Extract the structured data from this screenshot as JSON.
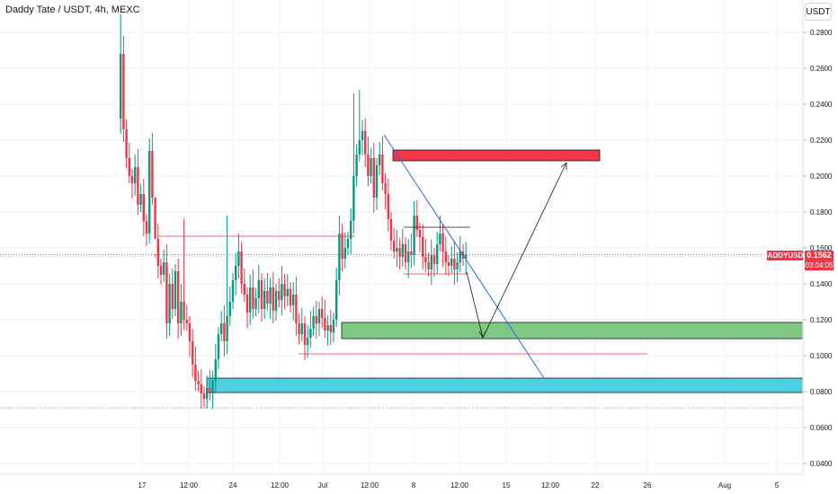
{
  "header": {
    "title": "Daddy Tate / USDT, 4h, MEXC",
    "currency_button": "USDT"
  },
  "price_label": {
    "symbol": "DADDYUSDT",
    "value": "0.1562",
    "countdown": "03:04:05"
  },
  "colors": {
    "up": "#089981",
    "down": "#f23645",
    "resistance_zone": "#f23645",
    "support_zone": "#81c784",
    "deep_support_zone": "#4dd0e1",
    "trendline": "#2962ff"
  },
  "chart_data": {
    "type": "candlestick",
    "title": "Daddy Tate / USDT, 4h, MEXC",
    "y_axis": {
      "ticks": [
        "0.2800",
        "0.2600",
        "0.2400",
        "0.2200",
        "0.2000",
        "0.1800",
        "0.1600",
        "0.1400",
        "0.1200",
        "0.1000",
        "0.0800",
        "0.0600",
        "0.0400"
      ],
      "range": [
        0.034,
        0.29
      ]
    },
    "x_axis": {
      "ticks": [
        "17",
        "12:00",
        "24",
        "12:00",
        "Jul",
        "12:00",
        "8",
        "12:00",
        "15",
        "12:00",
        "22",
        "26",
        "Aug",
        "5"
      ]
    },
    "last_price": 0.1562,
    "close_path": [
      [
        0,
        0.232
      ],
      [
        1,
        0.268
      ],
      [
        2,
        0.226
      ],
      [
        3,
        0.21
      ],
      [
        4,
        0.2
      ],
      [
        5,
        0.196
      ],
      [
        6,
        0.205
      ],
      [
        7,
        0.184
      ],
      [
        8,
        0.19
      ],
      [
        9,
        0.175
      ],
      [
        10,
        0.168
      ],
      [
        11,
        0.214
      ],
      [
        12,
        0.188
      ],
      [
        13,
        0.165
      ],
      [
        14,
        0.15
      ],
      [
        15,
        0.145
      ],
      [
        16,
        0.152
      ],
      [
        17,
        0.118
      ],
      [
        18,
        0.14
      ],
      [
        19,
        0.126
      ],
      [
        20,
        0.147
      ],
      [
        21,
        0.118
      ],
      [
        22,
        0.13
      ],
      [
        23,
        0.12
      ],
      [
        24,
        0.118
      ],
      [
        25,
        0.108
      ],
      [
        26,
        0.095
      ],
      [
        27,
        0.086
      ],
      [
        28,
        0.084
      ],
      [
        29,
        0.079
      ],
      [
        30,
        0.076
      ],
      [
        31,
        0.082
      ],
      [
        32,
        0.079
      ],
      [
        33,
        0.086
      ],
      [
        34,
        0.098
      ],
      [
        35,
        0.112
      ],
      [
        36,
        0.118
      ],
      [
        37,
        0.108
      ],
      [
        38,
        0.122
      ],
      [
        39,
        0.13
      ],
      [
        40,
        0.142
      ],
      [
        41,
        0.15
      ],
      [
        42,
        0.158
      ],
      [
        43,
        0.14
      ],
      [
        44,
        0.134
      ],
      [
        45,
        0.124
      ],
      [
        46,
        0.138
      ],
      [
        47,
        0.126
      ],
      [
        48,
        0.132
      ],
      [
        49,
        0.142
      ],
      [
        50,
        0.126
      ],
      [
        51,
        0.136
      ],
      [
        52,
        0.129
      ],
      [
        53,
        0.138
      ],
      [
        54,
        0.125
      ],
      [
        55,
        0.136
      ],
      [
        56,
        0.131
      ],
      [
        57,
        0.14
      ],
      [
        58,
        0.133
      ],
      [
        59,
        0.137
      ],
      [
        60,
        0.128
      ],
      [
        61,
        0.134
      ],
      [
        62,
        0.118
      ],
      [
        63,
        0.112
      ],
      [
        64,
        0.118
      ],
      [
        65,
        0.106
      ],
      [
        66,
        0.11
      ],
      [
        67,
        0.115
      ],
      [
        68,
        0.122
      ],
      [
        69,
        0.118
      ],
      [
        70,
        0.126
      ],
      [
        71,
        0.121
      ],
      [
        72,
        0.114
      ],
      [
        73,
        0.117
      ],
      [
        74,
        0.113
      ],
      [
        75,
        0.12
      ],
      [
        76,
        0.142
      ],
      [
        77,
        0.168
      ],
      [
        78,
        0.154
      ],
      [
        79,
        0.16
      ],
      [
        80,
        0.165
      ],
      [
        81,
        0.175
      ],
      [
        82,
        0.2
      ],
      [
        83,
        0.212
      ],
      [
        84,
        0.22
      ],
      [
        85,
        0.225
      ],
      [
        86,
        0.212
      ],
      [
        87,
        0.2
      ],
      [
        88,
        0.21
      ],
      [
        89,
        0.188
      ],
      [
        90,
        0.206
      ],
      [
        91,
        0.212
      ],
      [
        92,
        0.196
      ],
      [
        93,
        0.19
      ],
      [
        94,
        0.176
      ],
      [
        95,
        0.164
      ],
      [
        96,
        0.158
      ],
      [
        97,
        0.16
      ],
      [
        98,
        0.155
      ],
      [
        99,
        0.162
      ],
      [
        100,
        0.152
      ],
      [
        101,
        0.158
      ],
      [
        102,
        0.156
      ],
      [
        103,
        0.178
      ],
      [
        104,
        0.17
      ],
      [
        105,
        0.166
      ],
      [
        106,
        0.155
      ],
      [
        107,
        0.152
      ],
      [
        108,
        0.148
      ],
      [
        109,
        0.156
      ],
      [
        110,
        0.151
      ],
      [
        111,
        0.162
      ],
      [
        112,
        0.168
      ],
      [
        113,
        0.158
      ],
      [
        114,
        0.152
      ],
      [
        115,
        0.15
      ],
      [
        116,
        0.154
      ],
      [
        117,
        0.148
      ],
      [
        118,
        0.152
      ],
      [
        119,
        0.158
      ],
      [
        120,
        0.154
      ],
      [
        121,
        0.1562
      ]
    ],
    "drawings": {
      "resistance_zone": [
        0.2085,
        0.2145
      ],
      "support_zone": [
        0.1095,
        0.1185
      ],
      "deep_support_zone": [
        0.0795,
        0.0875
      ],
      "horizontal_levels": [
        0.1665,
        0.1715,
        0.1455,
        0.101
      ]
    }
  }
}
